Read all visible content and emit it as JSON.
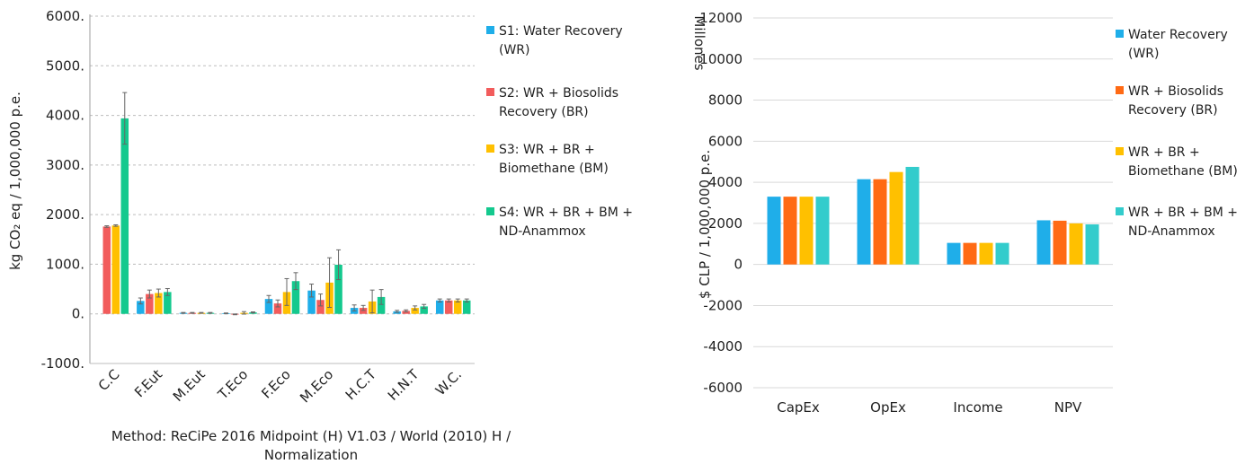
{
  "charts": [
    {
      "type": "bar",
      "ylabel": "kg CO₂ eq / 1,000,000 p.e.",
      "ylim": [
        -1000,
        6000
      ],
      "yticks": [
        -1000,
        0,
        1000,
        2000,
        3000,
        4000,
        5000,
        6000
      ],
      "ytick_labels": [
        "-1000.",
        "0.",
        "1000.",
        "2000.",
        "3000.",
        "4000.",
        "5000.",
        "6000."
      ],
      "grid": "dashed-horizontal",
      "legend_position": "right",
      "categories": [
        "C.C",
        "F.Eut",
        "M.Eut",
        "T.Eco",
        "F.Eco",
        "M.Eco",
        "H.C.T",
        "H.N.T",
        "W.C."
      ],
      "series": [
        {
          "name": "S1: Water Recovery (WR)",
          "color": "#1faee9",
          "values": [
            0,
            260,
            20,
            10,
            300,
            470,
            120,
            50,
            270
          ],
          "errors": [
            0,
            60,
            8,
            8,
            70,
            130,
            60,
            20,
            30
          ]
        },
        {
          "name": "S2: WR + Biosolids Recovery (BR)",
          "color": "#f25c5c",
          "values": [
            1760,
            400,
            20,
            -10,
            210,
            280,
            120,
            60,
            270
          ],
          "errors": [
            15,
            80,
            8,
            8,
            70,
            120,
            50,
            20,
            30
          ]
        },
        {
          "name": "S3: WR + BR + Biomethane (BM)",
          "color": "#ffc000",
          "values": [
            1780,
            420,
            20,
            20,
            440,
            630,
            250,
            120,
            270
          ],
          "errors": [
            15,
            80,
            8,
            25,
            270,
            500,
            230,
            40,
            30
          ]
        },
        {
          "name": "S4: WR + BR + BM + ND-Anammox",
          "color": "#14c98e",
          "values": [
            3940,
            440,
            20,
            30,
            660,
            990,
            340,
            150,
            270
          ],
          "errors": [
            520,
            70,
            8,
            10,
            170,
            300,
            150,
            40,
            30
          ]
        }
      ],
      "legend_labels": [
        [
          "S1: Water Recovery",
          "(WR)"
        ],
        [
          "S2: WR + Biosolids",
          "Recovery (BR)"
        ],
        [
          "S3: WR + BR +",
          "Biomethane (BM)"
        ],
        [
          "S4: WR + BR + BM +",
          "ND-Anammox"
        ]
      ],
      "caption": [
        "Method: ReCiPe 2016 Midpoint (H) V1.03 / World (2010) H /",
        "Normalization"
      ]
    },
    {
      "type": "bar",
      "ylabel": "$ CLP / 1,000,000 p.e.",
      "units_label": "Millones",
      "ylim": [
        -6000,
        12000
      ],
      "yticks": [
        -6000,
        -4000,
        -2000,
        0,
        2000,
        4000,
        6000,
        8000,
        10000,
        12000
      ],
      "ytick_labels": [
        "-6000",
        "-4000",
        "-2000",
        "0",
        "2000",
        "4000",
        "6000",
        "8000",
        "10000",
        "12000"
      ],
      "grid": "solid-horizontal",
      "legend_position": "right",
      "categories": [
        "CapEx",
        "OpEx",
        "Income",
        "NPV"
      ],
      "series": [
        {
          "name": "Water Recovery (WR)",
          "color": "#1faee9",
          "values": [
            3300,
            4150,
            1050,
            2150
          ]
        },
        {
          "name": "WR + Biosolids Recovery (BR)",
          "color": "#ff6a14",
          "values": [
            3300,
            4150,
            1050,
            2130
          ]
        },
        {
          "name": "WR + BR + Biomethane (BM)",
          "color": "#ffc000",
          "values": [
            3300,
            4500,
            1050,
            2000
          ]
        },
        {
          "name": "WR + BR + BM + ND-Anammox",
          "color": "#33cccc",
          "values": [
            3300,
            4750,
            1050,
            1950
          ]
        }
      ],
      "legend_labels": [
        [
          "Water Recovery",
          "(WR)"
        ],
        [
          "WR + Biosolids",
          "Recovery (BR)"
        ],
        [
          "WR + BR +",
          "Biomethane (BM)"
        ],
        [
          "WR + BR + BM +",
          "ND-Anammox"
        ]
      ]
    }
  ]
}
